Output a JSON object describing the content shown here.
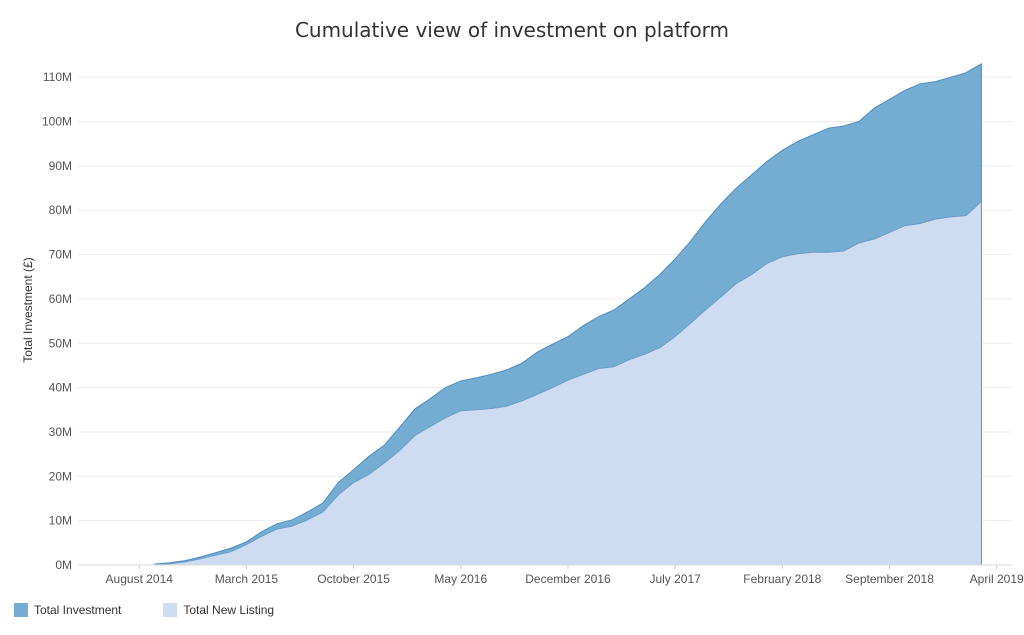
{
  "chart_data": {
    "type": "area",
    "title": "Cumulative view of investment on platform",
    "xlabel": "",
    "ylabel": "Total Investment (£)",
    "ylim": [
      0,
      115
    ],
    "y_unit_suffix": "M",
    "y_ticks": [
      0,
      10,
      20,
      30,
      40,
      50,
      60,
      70,
      80,
      90,
      100,
      110
    ],
    "x_tick_labels": [
      "August 2014",
      "March 2015",
      "October 2015",
      "May 2016",
      "December 2016",
      "July 2017",
      "February 2018",
      "September 2018",
      "April 2019"
    ],
    "x_tick_dates": [
      "2014-08",
      "2015-03",
      "2015-10",
      "2016-05",
      "2016-12",
      "2017-07",
      "2018-02",
      "2018-09",
      "2019-04"
    ],
    "x": [
      "2014-09",
      "2014-10",
      "2014-11",
      "2014-12",
      "2015-01",
      "2015-02",
      "2015-03",
      "2015-04",
      "2015-05",
      "2015-06",
      "2015-07",
      "2015-08",
      "2015-09",
      "2015-10",
      "2015-11",
      "2015-12",
      "2016-01",
      "2016-02",
      "2016-03",
      "2016-04",
      "2016-05",
      "2016-06",
      "2016-07",
      "2016-08",
      "2016-09",
      "2016-10",
      "2016-11",
      "2016-12",
      "2017-01",
      "2017-02",
      "2017-03",
      "2017-04",
      "2017-05",
      "2017-06",
      "2017-07",
      "2017-08",
      "2017-09",
      "2017-10",
      "2017-11",
      "2017-12",
      "2018-01",
      "2018-02",
      "2018-03",
      "2018-04",
      "2018-05",
      "2018-06",
      "2018-07",
      "2018-08",
      "2018-09",
      "2018-10",
      "2018-11",
      "2018-12",
      "2019-01",
      "2019-02",
      "2019-03"
    ],
    "series": [
      {
        "name": "Total Investment",
        "color": "#75acd1",
        "stroke": "#4e8fc1",
        "values": [
          0.2,
          0.5,
          1.0,
          1.8,
          2.8,
          3.8,
          5.2,
          7.5,
          9.3,
          10.2,
          12.0,
          14.0,
          18.6,
          21.5,
          24.5,
          27.0,
          31.0,
          35.2,
          37.5,
          40.0,
          41.5,
          42.2,
          43.0,
          44.0,
          45.5,
          48.0,
          49.8,
          51.5,
          54.0,
          56.0,
          57.5,
          60.0,
          62.5,
          65.5,
          69.0,
          73.0,
          77.5,
          81.5,
          85.0,
          88.0,
          91.0,
          93.5,
          95.5,
          97.0,
          98.5,
          99.0,
          100.0,
          103.0,
          105.0,
          107.0,
          108.5,
          109.0,
          110.0,
          111.0,
          113.0
        ]
      },
      {
        "name": "Total New Listing",
        "color": "#cddcf1",
        "stroke": "#6d9dc8",
        "values": [
          0.1,
          0.3,
          0.7,
          1.4,
          2.2,
          3.0,
          4.6,
          6.5,
          8.1,
          8.8,
          10.2,
          12.0,
          15.8,
          18.6,
          20.4,
          23.0,
          25.8,
          29.2,
          31.2,
          33.2,
          34.8,
          35.0,
          35.3,
          35.8,
          37.0,
          38.5,
          40.0,
          41.7,
          43.0,
          44.3,
          44.7,
          46.3,
          47.5,
          49.0,
          51.5,
          54.5,
          57.6,
          60.5,
          63.5,
          65.5,
          68.0,
          69.5,
          70.2,
          70.5,
          70.5,
          70.8,
          72.6,
          73.5,
          75.0,
          76.5,
          77.0,
          78.0,
          78.5,
          78.8,
          82.0
        ]
      }
    ],
    "legend_position": "bottom-left",
    "grid": "horizontal"
  }
}
